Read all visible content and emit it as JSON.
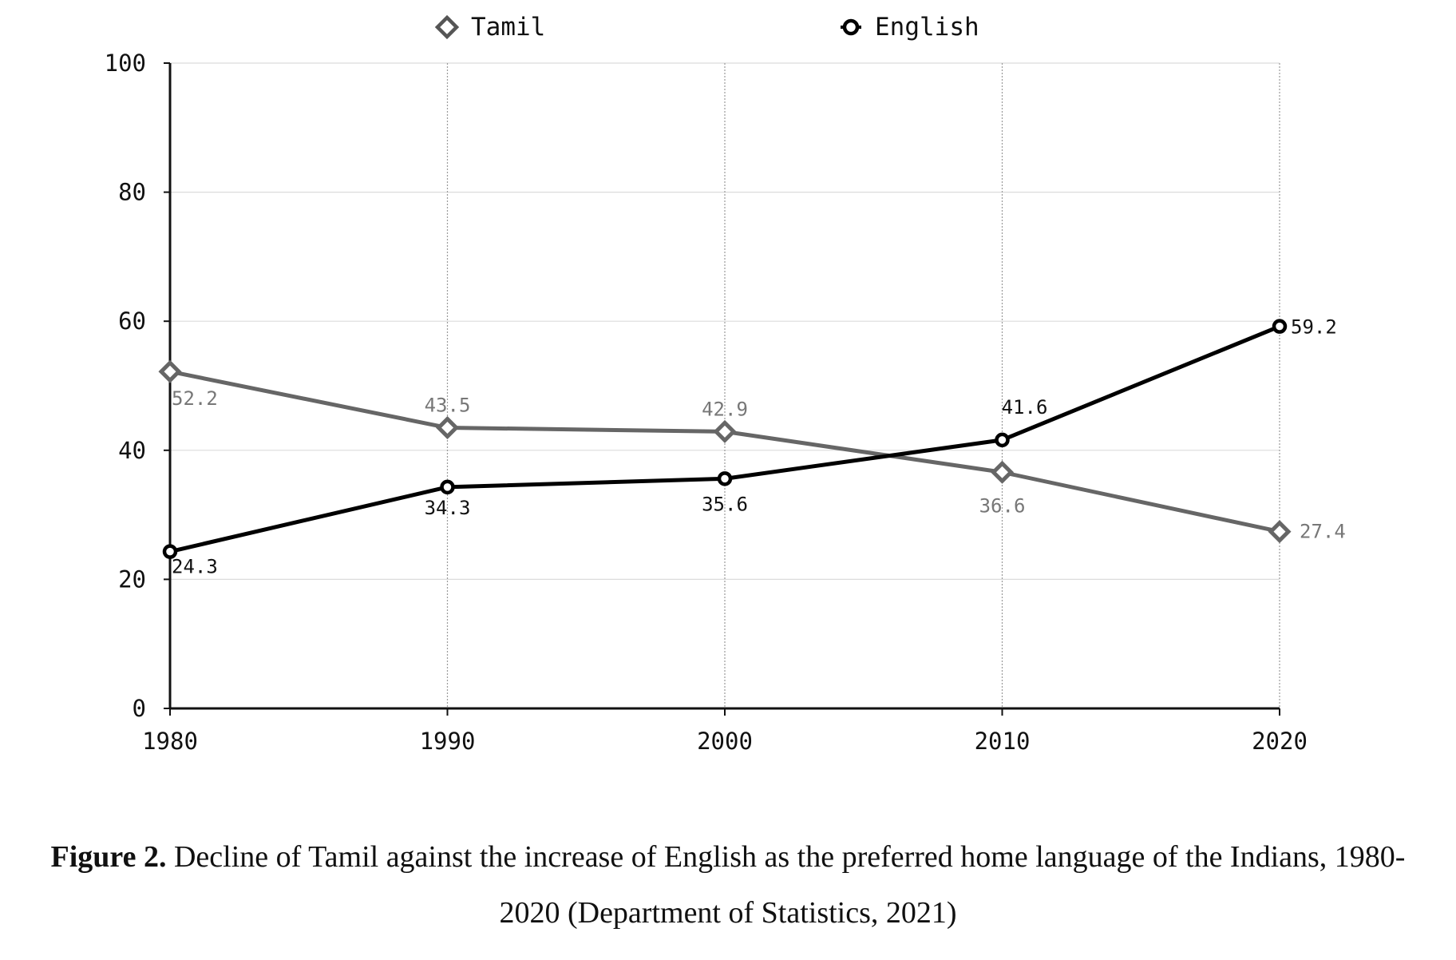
{
  "chart_data": {
    "type": "line",
    "x": [
      1980,
      1990,
      2000,
      2010,
      2020
    ],
    "ylim": [
      0,
      100
    ],
    "yticks": [
      0,
      20,
      40,
      60,
      80,
      100
    ],
    "grid": true,
    "legend": "top",
    "series": [
      {
        "name": "Tamil",
        "values": [
          52.2,
          43.5,
          42.9,
          36.6,
          27.4
        ],
        "color": "#666666",
        "marker": "diamond"
      },
      {
        "name": "English",
        "values": [
          24.3,
          34.3,
          35.6,
          41.6,
          59.2
        ],
        "color": "#000000",
        "marker": "circle"
      }
    ],
    "value_labels": {
      "Tamil": [
        "52.2",
        "43.5",
        "42.9",
        "36.6",
        "27.4"
      ],
      "English": [
        "24.3",
        "34.3",
        "35.6",
        "41.6",
        "59.2"
      ]
    }
  },
  "caption": {
    "label": "Figure 2.",
    "text": " Decline of Tamil against the increase of English as the preferred home language of the Indians, 1980-2020 (Department of Statistics, 2021)"
  }
}
